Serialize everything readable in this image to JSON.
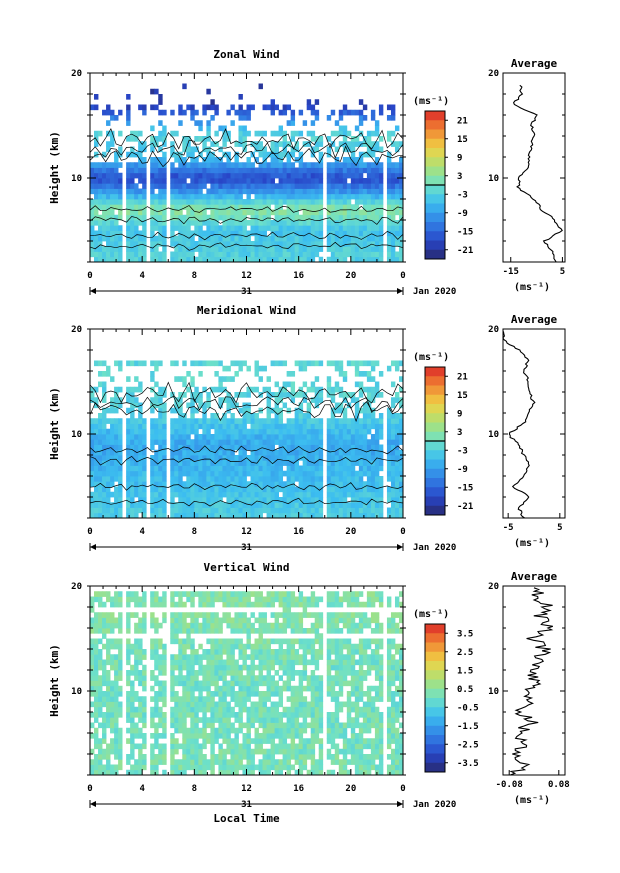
{
  "chart_data": [
    {
      "type": "heatmap",
      "title": "Zonal Wind",
      "ylabel": "Height (km)",
      "xlabel": "",
      "xlim": [
        0,
        24
      ],
      "ylim": [
        2,
        20
      ],
      "x_ticks": [
        "0",
        "4",
        "8",
        "12",
        "16",
        "20",
        "0"
      ],
      "y_ticks": [
        "20",
        "10"
      ],
      "day_label": "31",
      "date_label": "Jan 2020",
      "colorbar": {
        "unit": "(ms⁻¹)",
        "ticks": [
          "21",
          "15",
          "9",
          "3",
          "-3",
          "-9",
          "-15",
          "-21"
        ],
        "range": [
          -24,
          24
        ]
      },
      "contour_value": 0,
      "profile": {
        "title": "Average",
        "xlabel": "(ms⁻¹)",
        "x_ticks": [
          "-15",
          "5"
        ],
        "y_ticks": [
          "20",
          "10"
        ],
        "xlim": [
          -18,
          6
        ],
        "heights": [
          2.5,
          3.5,
          4.5,
          5.5,
          6.5,
          7.5,
          8.5,
          9.5,
          10.5,
          11.5,
          12.5,
          13.5,
          14.5,
          15.5,
          16.5,
          17.5,
          18.5
        ],
        "values": [
          2,
          1,
          -2,
          5,
          2,
          -3,
          -6,
          -12,
          -12,
          -8,
          -8,
          -7,
          -6,
          -7,
          -5,
          -14,
          -11
        ]
      },
      "field_summary": {
        "heights": [
          3,
          5,
          7,
          9,
          10,
          12,
          14,
          17
        ],
        "mean_values": [
          -3,
          -5,
          3,
          -12,
          -18,
          -5,
          -2,
          -20
        ]
      }
    },
    {
      "type": "heatmap",
      "title": "Meridional Wind",
      "ylabel": "Height (km)",
      "xlabel": "",
      "xlim": [
        0,
        24
      ],
      "ylim": [
        2,
        20
      ],
      "x_ticks": [
        "0",
        "4",
        "8",
        "12",
        "16",
        "20",
        "0"
      ],
      "y_ticks": [
        "20",
        "10"
      ],
      "day_label": "31",
      "date_label": "Jan 2020",
      "colorbar": {
        "unit": "(ms⁻¹)",
        "ticks": [
          "21",
          "15",
          "9",
          "3",
          "-3",
          "-9",
          "-15",
          "-21"
        ],
        "range": [
          -24,
          24
        ]
      },
      "contour_value": 0,
      "profile": {
        "title": "Average",
        "xlabel": "(ms⁻¹)",
        "x_ticks": [
          "-5",
          "5"
        ],
        "y_ticks": [
          "20",
          "10"
        ],
        "xlim": [
          -6,
          6
        ],
        "heights": [
          2.5,
          3.5,
          4.5,
          5.5,
          6.5,
          7.5,
          8.5,
          9.5,
          10.5,
          11.5,
          12.5,
          13.5,
          14.5,
          15.5,
          16.5,
          17.5,
          18.5,
          19.5
        ],
        "values": [
          -2,
          -3,
          -1,
          -4,
          -2,
          -1,
          -2,
          -3,
          -5,
          -2,
          -1,
          0,
          -1,
          -1,
          -2,
          -1,
          -3,
          -6
        ]
      },
      "field_summary": {
        "heights": [
          3,
          6,
          9,
          12,
          15
        ],
        "mean_values": [
          -4,
          -6,
          -8,
          -3,
          -2
        ]
      }
    },
    {
      "type": "heatmap",
      "title": "Vertical Wind",
      "ylabel": "Height (km)",
      "xlabel": "Local Time",
      "xlim": [
        0,
        24
      ],
      "ylim": [
        2,
        20
      ],
      "x_ticks": [
        "0",
        "4",
        "8",
        "12",
        "16",
        "20",
        "0"
      ],
      "y_ticks": [
        "20",
        "10"
      ],
      "day_label": "31",
      "date_label": "Jan 2020",
      "colorbar": {
        "unit": "(ms⁻¹)",
        "ticks": [
          "3.5",
          "2.5",
          "1.5",
          "0.5",
          "-0.5",
          "-1.5",
          "-2.5",
          "-3.5"
        ],
        "range": [
          -4,
          4
        ]
      },
      "profile": {
        "title": "Average",
        "xlabel": "(ms⁻¹)",
        "x_ticks": [
          "-0.08",
          "0.08"
        ],
        "y_ticks": [
          "20",
          "10"
        ],
        "xlim": [
          -0.1,
          0.1
        ],
        "heights": [
          2.5,
          3.5,
          4.5,
          5.5,
          6.5,
          7.5,
          8.5,
          9.5,
          10.5,
          11.5,
          12.5,
          13.5,
          14.5,
          15.5,
          16.5,
          17.5,
          18.5,
          19.5
        ],
        "values": [
          -0.06,
          -0.03,
          -0.07,
          -0.02,
          -0.05,
          -0.01,
          -0.04,
          0.0,
          -0.02,
          0.01,
          -0.01,
          0.02,
          0.03,
          0.0,
          0.05,
          0.02,
          0.04,
          0.01
        ]
      },
      "field_summary": {
        "heights": [
          4,
          8,
          12,
          16
        ],
        "mean_values": [
          0.2,
          0.1,
          0.1,
          0.3
        ]
      }
    }
  ]
}
